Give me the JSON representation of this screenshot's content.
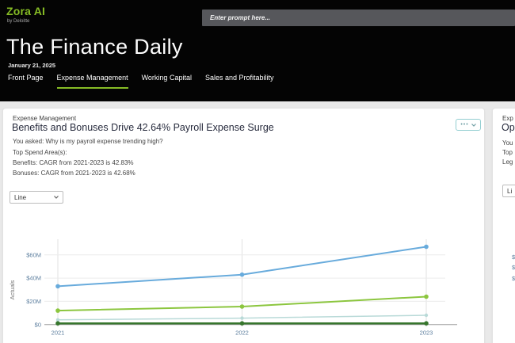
{
  "header": {
    "brand": {
      "name": "Zora AI",
      "byline": "by Deloitte"
    },
    "prompt_placeholder": "Enter prompt here...",
    "title": "The Finance Daily",
    "date": "January 21, 2025",
    "tabs": [
      {
        "label": "Front Page",
        "active": false
      },
      {
        "label": "Expense Management",
        "active": true
      },
      {
        "label": "Working Capital",
        "active": false
      },
      {
        "label": "Sales and Profitability",
        "active": false
      }
    ]
  },
  "left_card": {
    "section_label": "Expense Management",
    "title": "Benefits and Bonuses Drive 42.64% Payroll Expense Surge",
    "question": "You asked: Why is my payroll expense trending high?",
    "top_spend_label": "Top Spend Area(s):",
    "benefits_line": "Benefits: CAGR from 2021-2023 is 42.83%",
    "bonuses_line": "Bonuses: CAGR from 2021-2023 is 42.68%",
    "menu_button_dots": "•••",
    "chart_type_selected": "Line"
  },
  "right_card": {
    "section_label": "Exp",
    "title": "Op",
    "line1": "You",
    "line2": "Top",
    "line3": "Leg",
    "chart_type_selected": "Li",
    "tick_fragments": [
      "$",
      "$",
      "$"
    ]
  },
  "chart_data": {
    "type": "line",
    "x": [
      "2021",
      "2022",
      "2023"
    ],
    "series": [
      {
        "name": "blue-series",
        "color": "#68abdc",
        "stroke_width": 2,
        "marker_r": 2.8,
        "values": [
          33,
          43,
          67
        ]
      },
      {
        "name": "green-series",
        "color": "#8cc63f",
        "stroke_width": 2,
        "marker_r": 2.8,
        "values": [
          12,
          15.5,
          24
        ]
      },
      {
        "name": "teal-series",
        "color": "#b9dad8",
        "stroke_width": 1.5,
        "marker_r": 2.2,
        "values": [
          4,
          5.5,
          8
        ]
      },
      {
        "name": "dark-green-series",
        "color": "#37762d",
        "stroke_width": 2.5,
        "marker_r": 2.8,
        "values": [
          1,
          1,
          1
        ]
      }
    ],
    "ylabel": "Actuals",
    "yticks": {
      "values": [
        0,
        20,
        40,
        60
      ],
      "labels": [
        "$0",
        "$20M",
        "$40M",
        "$60M"
      ]
    },
    "ylim": [
      0,
      78
    ],
    "grid": true,
    "legend": "none"
  },
  "theme": {
    "accent_green": "#86bc25",
    "header_bg": "#040404",
    "page_bg": "#e9e9e9",
    "tick_label_color": "#5c7e9e",
    "axis_label_color": "#757575",
    "grid_color": "#ececec",
    "axis_line_color": "#9e9e9e",
    "menu_border_teal": "#93ced1"
  }
}
